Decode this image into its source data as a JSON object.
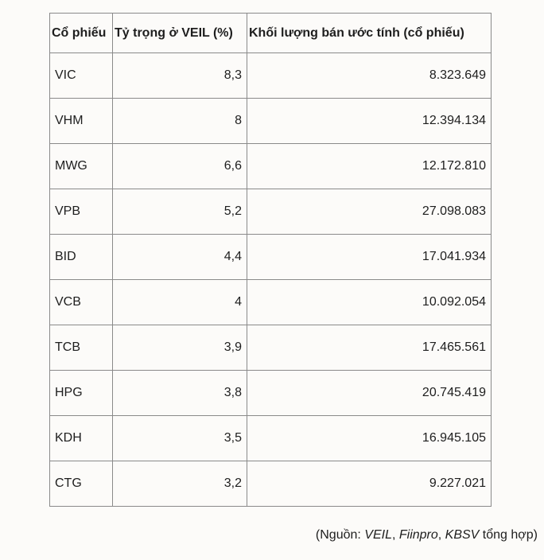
{
  "table": {
    "headers": [
      "Cổ phiếu",
      "Tỷ trọng ở VEIL (%)",
      "Khối lượng bán ước tính (cổ phiếu)"
    ],
    "rows": [
      {
        "ticker": "VIC",
        "weight": "8,3",
        "volume": "8.323.649"
      },
      {
        "ticker": "VHM",
        "weight": "8",
        "volume": "12.394.134"
      },
      {
        "ticker": "MWG",
        "weight": "6,6",
        "volume": "12.172.810"
      },
      {
        "ticker": "VPB",
        "weight": "5,2",
        "volume": "27.098.083"
      },
      {
        "ticker": "BID",
        "weight": "4,4",
        "volume": "17.041.934"
      },
      {
        "ticker": "VCB",
        "weight": "4",
        "volume": "10.092.054"
      },
      {
        "ticker": "TCB",
        "weight": "3,9",
        "volume": "17.465.561"
      },
      {
        "ticker": "HPG",
        "weight": "3,8",
        "volume": "20.745.419"
      },
      {
        "ticker": "KDH",
        "weight": "3,5",
        "volume": "16.945.105"
      },
      {
        "ticker": "CTG",
        "weight": "3,2",
        "volume": "9.227.021"
      }
    ]
  },
  "source": {
    "prefix": "(Nguồn: ",
    "src1": "VEIL",
    "sep1": ", ",
    "src2": "Fiinpro",
    "sep2": ", ",
    "src3": "KBSV",
    "suffix": " tổng hợp)"
  }
}
